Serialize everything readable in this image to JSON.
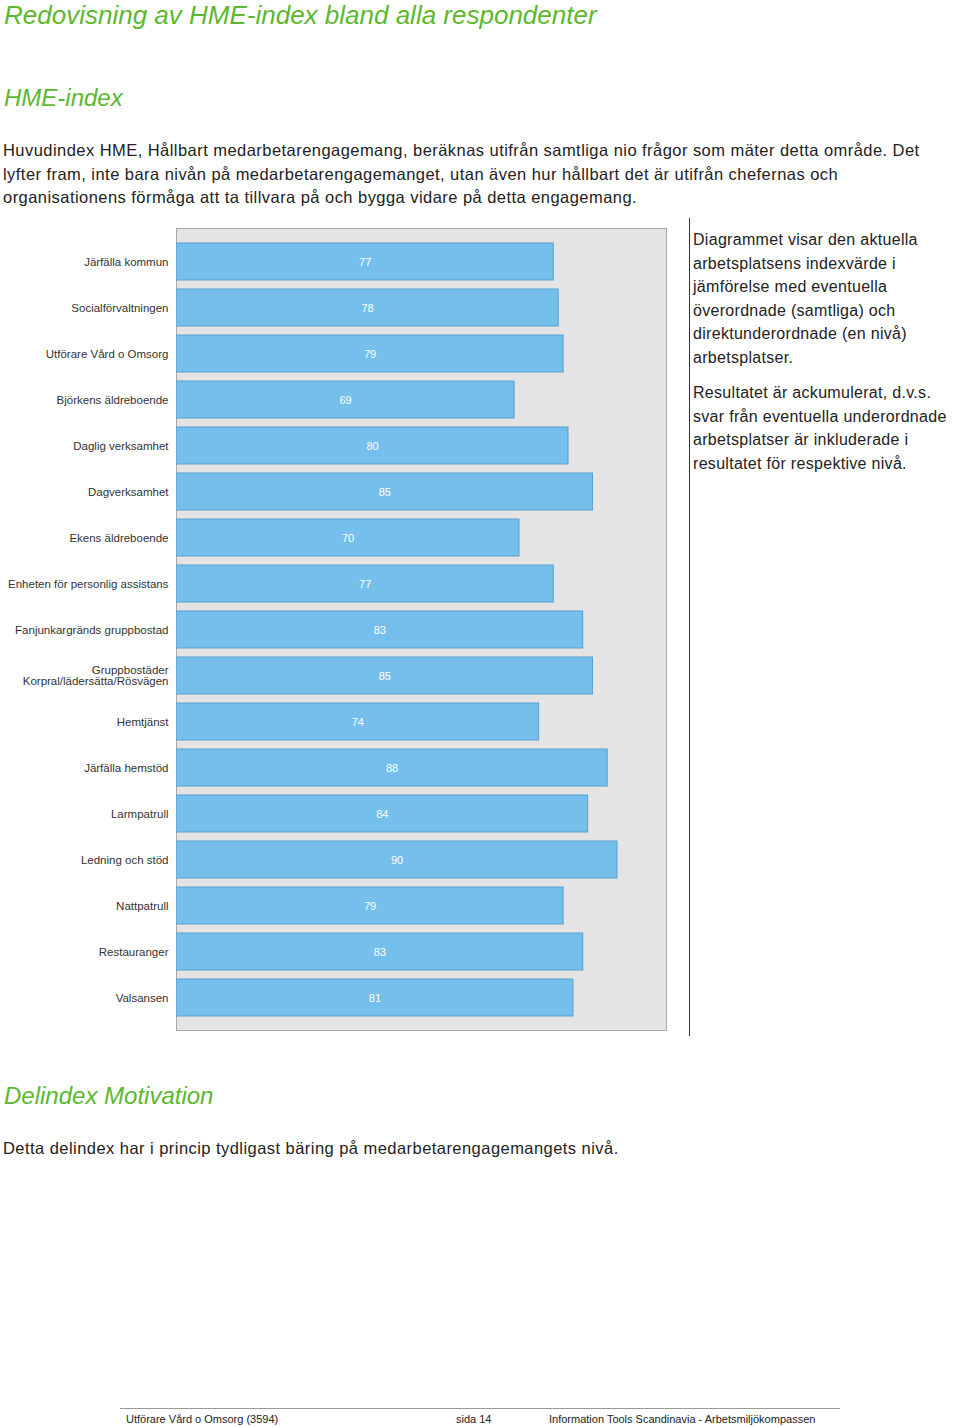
{
  "page": {
    "title": "Redovisning av HME-index bland alla respondenter",
    "section1": {
      "heading": "HME-index",
      "text": "Huvudindex HME, Hållbart medarbetarengagemang, beräknas utifrån samtliga nio frågor som mäter detta område. Det lyfter fram, inte bara nivån på medarbetarengagemanget, utan även hur hållbart det är utifrån chefernas och organisationens förmåga att ta tillvara på och bygga vidare på detta engagemang."
    },
    "side_note": [
      "Diagrammet visar den aktuella arbetsplatsens indexvärde i jämförelse med eventuella överordnade (samtliga) och direktunderordnade (en nivå) arbetsplatser.",
      "Resultatet är ackumulerat, d.v.s. svar från eventuella underordnade arbetsplatser är inkluderade i resultatet för respektive nivå."
    ],
    "section2": {
      "heading": "Delindex Motivation",
      "text": "Detta delindex har i princip tydligast bäring på medarbetarengagemangets nivå."
    },
    "footer": [
      "Utförare Vård o Omsorg (3594)",
      "sida 14",
      "Information Tools Scandinavia - Arbetsmiljökompassen"
    ]
  },
  "chart_data": {
    "type": "bar",
    "orientation": "horizontal",
    "categories": [
      "Järfälla kommun",
      "Socialförvaltningen",
      "Utförare Vård o Omsorg",
      "Björkens äldreboende",
      "Daglig verksamhet",
      "Dagverksamhet",
      "Ekens äldreboende",
      "Enheten för personlig assistans",
      "Fanjunkargränds gruppbostad",
      "Gruppbostäder\nKorpral/lädersätta/Rösvägen",
      "Hemtjänst",
      "Järfälla hemstöd",
      "Larmpatrull",
      "Ledning och stöd",
      "Nattpatrull",
      "Restauranger",
      "Valsansen"
    ],
    "values": [
      77,
      78,
      79,
      69,
      80,
      85,
      70,
      77,
      83,
      85,
      74,
      88,
      84,
      90,
      79,
      83,
      81
    ],
    "color": "#74bfec",
    "xlim": [
      0,
      100
    ],
    "tick_labels": "y",
    "data_labels": true
  }
}
